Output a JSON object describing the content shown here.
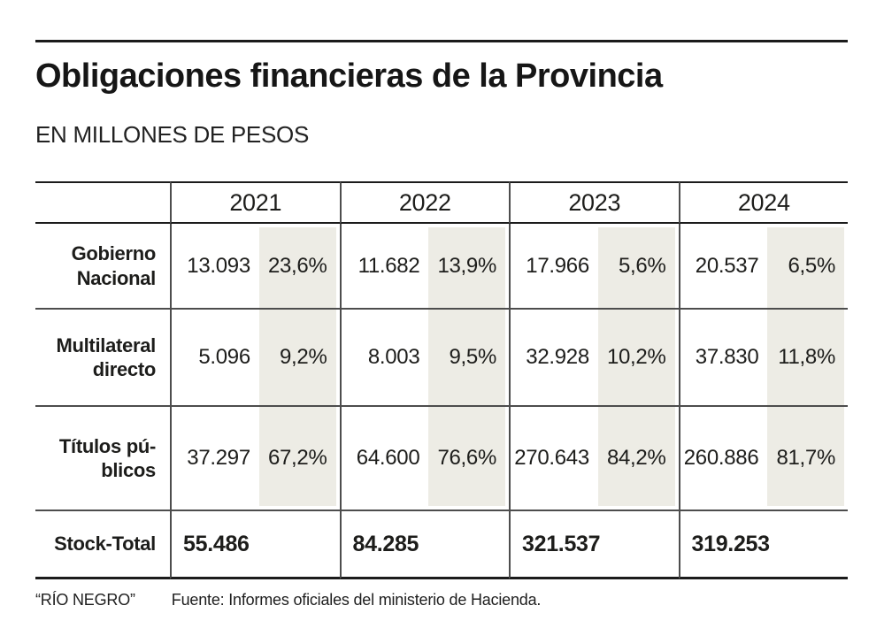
{
  "header": {
    "title": "Obligaciones financieras de la Provincia",
    "subtitle": "EN MILLONES DE PESOS"
  },
  "table": {
    "year_headers": [
      "2021",
      "2022",
      "2023",
      "2024"
    ],
    "rows": [
      {
        "label": "Gobierno Nacional",
        "label_line1": "Gobierno",
        "label_line2": "Nacional",
        "cells": [
          {
            "value": "13.093",
            "pct": "23,6%"
          },
          {
            "value": "11.682",
            "pct": "13,9%"
          },
          {
            "value": "17.966",
            "pct": "5,6%"
          },
          {
            "value": "20.537",
            "pct": "6,5%"
          }
        ]
      },
      {
        "label": "Multilateral directo",
        "label_line1": "Multilateral",
        "label_line2": "directo",
        "cells": [
          {
            "value": "5.096",
            "pct": "9,2%"
          },
          {
            "value": "8.003",
            "pct": "9,5%"
          },
          {
            "value": "32.928",
            "pct": "10,2%"
          },
          {
            "value": "37.830",
            "pct": "11,8%"
          }
        ]
      },
      {
        "label": "Títulos públicos",
        "label_line1": "Títulos pú-",
        "label_line2": "blicos",
        "cells": [
          {
            "value": "37.297",
            "pct": "67,2%"
          },
          {
            "value": "64.600",
            "pct": "76,6%"
          },
          {
            "value": "270.643",
            "pct": "84,2%"
          },
          {
            "value": "260.886",
            "pct": "81,7%"
          }
        ]
      }
    ],
    "total_row": {
      "label": "Stock-Total",
      "values": [
        "55.486",
        "84.285",
        "321.537",
        "319.253"
      ]
    }
  },
  "footer": {
    "credit": "“RÍO NEGRO”",
    "source": "Fuente: Informes oficiales del ministerio de Hacienda."
  },
  "colors": {
    "dark": "#1b1b1b",
    "mid": "#4d4d4d",
    "text": "#1d1d1b",
    "band": "#edece5",
    "bg": "#ffffff"
  },
  "chart_data": {
    "type": "table",
    "title": "Obligaciones financieras de la Provincia",
    "subtitle": "EN MILLONES DE PESOS",
    "unit": "millones de pesos",
    "categories": [
      2021,
      2022,
      2023,
      2024
    ],
    "series": [
      {
        "name": "Gobierno Nacional",
        "values": [
          13093,
          11682,
          17966,
          20537
        ],
        "share_pct": [
          23.6,
          13.9,
          5.6,
          6.5
        ]
      },
      {
        "name": "Multilateral directo",
        "values": [
          5096,
          8003,
          32928,
          37830
        ],
        "share_pct": [
          9.2,
          9.5,
          10.2,
          11.8
        ]
      },
      {
        "name": "Títulos públicos",
        "values": [
          37297,
          64600,
          270643,
          260886
        ],
        "share_pct": [
          67.2,
          76.6,
          84.2,
          81.7
        ]
      }
    ],
    "totals": {
      "name": "Stock-Total",
      "values": [
        55486,
        84285,
        321537,
        319253
      ]
    },
    "source": "Fuente: Informes oficiales del ministerio de Hacienda.",
    "credit": "RÍO NEGRO",
    "layout": {
      "shaded_share_columns": true,
      "grid": "rules-horizontal-and-vertical"
    }
  }
}
